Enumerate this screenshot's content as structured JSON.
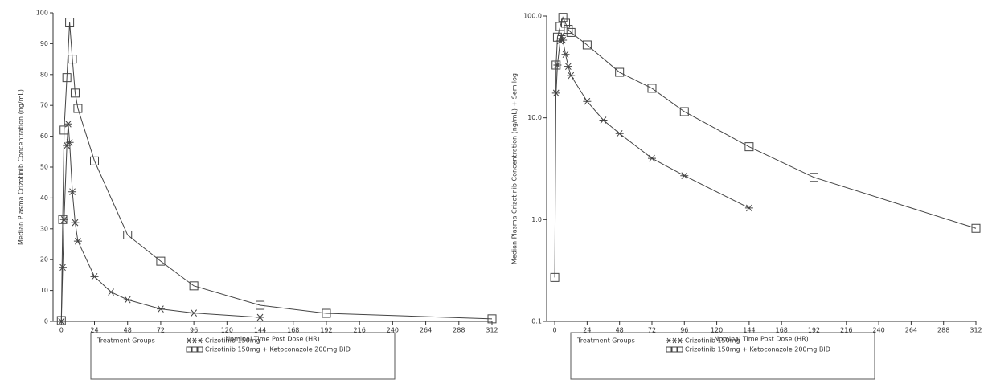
{
  "chart_data": [
    {
      "type": "line",
      "xlabel": "Nominal Time Post Dose (HR)",
      "ylabel": "Median Plasma Crizotinib Concentration (ng/mL)",
      "legend_title": "Treatment Groups",
      "xlim": [
        -6,
        312
      ],
      "xticks": [
        0,
        24,
        48,
        72,
        96,
        120,
        144,
        168,
        192,
        216,
        240,
        264,
        288,
        312
      ],
      "ylim": [
        0,
        100
      ],
      "yticks": [
        0,
        10,
        20,
        30,
        40,
        50,
        60,
        70,
        80,
        90,
        100
      ],
      "log_y": false,
      "series": [
        {
          "name": "Crizotinib 150mg",
          "color": "#444444",
          "marker": "star",
          "x": [
            0,
            1,
            2,
            4,
            5,
            6,
            8,
            10,
            12,
            24,
            36,
            48,
            72,
            96,
            144
          ],
          "values": [
            0,
            17.5,
            33,
            57,
            64,
            58,
            42,
            32,
            26,
            14.5,
            9.5,
            7,
            4,
            2.7,
            1.3
          ]
        },
        {
          "name": "Crizotinib 150mg + Ketoconazole 200mg BID",
          "color": "#444444",
          "marker": "square",
          "x": [
            0,
            1,
            2,
            4,
            6,
            8,
            10,
            12,
            24,
            48,
            72,
            96,
            144,
            192,
            312
          ],
          "values": [
            0.27,
            33,
            62,
            79,
            97,
            85,
            74,
            69,
            52,
            28,
            19.5,
            11.5,
            5.2,
            2.6,
            0.82
          ]
        }
      ]
    },
    {
      "type": "line",
      "xlabel": "Nominal Time Post Dose (HR)",
      "ylabel": "Median Plasma Crizotinib Concentration (ng/mL) + Semilog",
      "legend_title": "Treatment Groups",
      "xlim": [
        -6,
        312
      ],
      "xticks": [
        0,
        24,
        48,
        72,
        96,
        120,
        144,
        168,
        192,
        216,
        240,
        264,
        288,
        312
      ],
      "ylim": [
        0.1,
        100
      ],
      "yticks": [
        0.1,
        {
          "value": 1,
          "label": "1.0"
        },
        {
          "value": 10,
          "label": "10.0"
        },
        {
          "value": 100,
          "label": "100.0"
        }
      ],
      "log_y": true,
      "series": [
        {
          "name": "Crizotinib 150mg",
          "color": "#444444",
          "marker": "star",
          "x": [
            1,
            2,
            4,
            5,
            6,
            8,
            10,
            12,
            24,
            36,
            48,
            72,
            96,
            144
          ],
          "values": [
            17.5,
            33,
            57,
            64,
            58,
            42,
            32,
            26,
            14.5,
            9.5,
            7,
            4,
            2.7,
            1.3
          ]
        },
        {
          "name": "Crizotinib 150mg + Ketoconazole 200mg BID",
          "color": "#444444",
          "marker": "square",
          "x": [
            0,
            1,
            2,
            4,
            6,
            8,
            10,
            12,
            24,
            48,
            72,
            96,
            144,
            192,
            312
          ],
          "values": [
            0.27,
            33,
            62,
            79,
            97,
            85,
            74,
            69,
            52,
            28,
            19.5,
            11.5,
            5.2,
            2.6,
            0.82
          ]
        }
      ]
    }
  ]
}
